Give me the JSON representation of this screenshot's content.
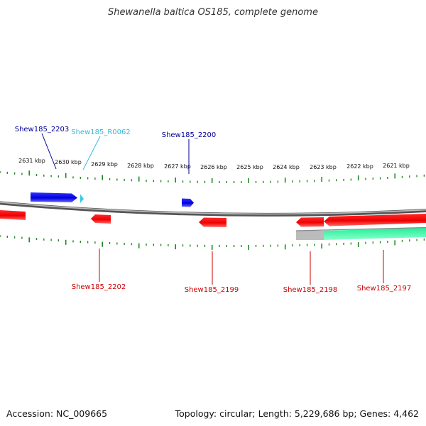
{
  "title": "Shewanella baltica OS185, complete genome",
  "footer": {
    "accession": "Accession: NC_009665",
    "stats": "Topology: circular; Length: 5,229,686 bp; Genes: 4,462"
  },
  "colors": {
    "forward_gene": "#0000ee",
    "reverse_gene": "#ee0000",
    "rna_gene": "#33ccee",
    "backbone": "#777777",
    "tick": "#228822",
    "feature_gray": "#bbbbbb",
    "feature_green": "#22ee99"
  },
  "scale_labels": [
    "2631 kbp",
    "2630 kbp",
    "2629 kbp",
    "2628 kbp",
    "2627 kbp",
    "2626 kbp",
    "2625 kbp",
    "2624 kbp",
    "2623 kbp",
    "2622 kbp",
    "2621 kbp"
  ],
  "gene_labels": {
    "top": [
      {
        "text": "Shew185_2203",
        "color": "#000099"
      },
      {
        "text": "Shew185_R0062",
        "color": "#33bbdd"
      },
      {
        "text": "Shew185_2200",
        "color": "#000099"
      }
    ],
    "bottom": [
      {
        "text": "Shew185_2202",
        "color": "#cc0000"
      },
      {
        "text": "Shew185_2199",
        "color": "#cc0000"
      },
      {
        "text": "Shew185_2198",
        "color": "#cc0000"
      },
      {
        "text": "Shew185_2197",
        "color": "#cc0000"
      }
    ]
  }
}
